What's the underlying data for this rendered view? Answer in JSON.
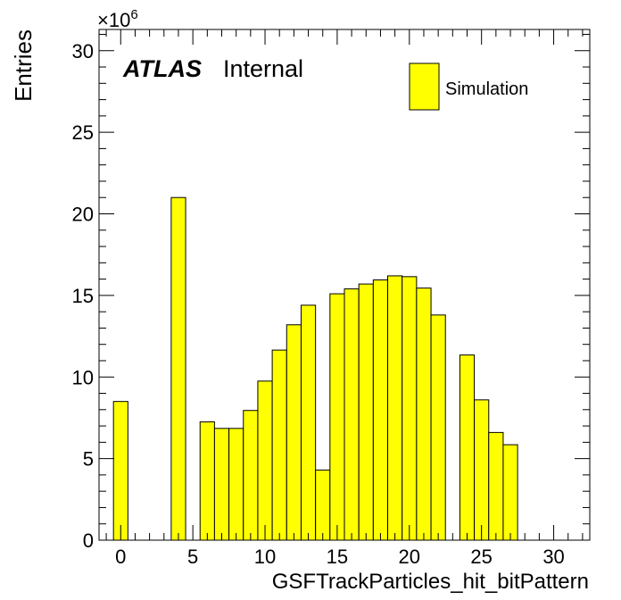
{
  "chart_data": {
    "type": "bar",
    "xlabel": "GSFTrackParticles_hit_bitPattern",
    "ylabel": "Entries",
    "scale_base": "×10",
    "scale_exp": "6",
    "xlim": [
      -1.5,
      32.5
    ],
    "ylim": [
      0,
      31.3
    ],
    "xticks": [
      0,
      5,
      10,
      15,
      20,
      25,
      30
    ],
    "yticks": [
      0,
      5,
      10,
      15,
      20,
      25,
      30
    ],
    "bin_width": 1,
    "x": [
      0,
      1,
      2,
      3,
      4,
      5,
      6,
      7,
      8,
      9,
      10,
      11,
      12,
      13,
      14,
      15,
      16,
      17,
      18,
      19,
      20,
      21,
      22,
      23,
      24,
      25,
      26,
      27,
      28,
      29,
      30,
      31,
      32
    ],
    "values": [
      8.5,
      0,
      0,
      0,
      21.0,
      0,
      7.25,
      6.85,
      6.85,
      7.95,
      9.75,
      11.65,
      13.2,
      14.4,
      4.3,
      15.1,
      15.4,
      15.7,
      15.95,
      16.2,
      16.15,
      15.45,
      13.8,
      0,
      11.35,
      8.6,
      6.6,
      5.85,
      0,
      0,
      0,
      0,
      0
    ],
    "fill_color": "#ffff00",
    "line_color": "#000000",
    "grid": false,
    "legend": {
      "position": "top-right",
      "entries": [
        "Simulation"
      ]
    },
    "annotation": {
      "atlas": "ATLAS",
      "status": "Internal"
    }
  }
}
